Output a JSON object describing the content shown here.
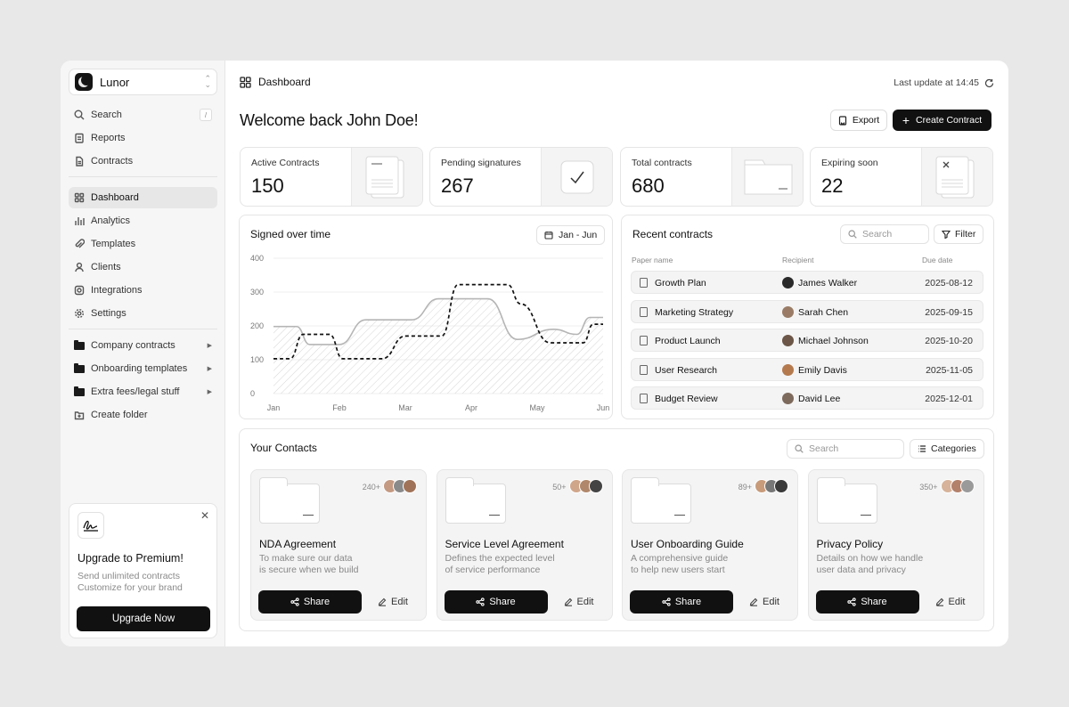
{
  "app": {
    "name": "Lunor"
  },
  "sidebar": {
    "search_label": "Search",
    "search_shortcut": "/",
    "top_items": [
      {
        "label": "Reports",
        "icon": "report-icon"
      },
      {
        "label": "Contracts",
        "icon": "contract-icon"
      }
    ],
    "main_items": [
      {
        "label": "Dashboard",
        "icon": "grid-icon",
        "active": true
      },
      {
        "label": "Analytics",
        "icon": "analytics-icon"
      },
      {
        "label": "Templates",
        "icon": "paperclip-icon"
      },
      {
        "label": "Clients",
        "icon": "user-icon"
      },
      {
        "label": "Integrations",
        "icon": "integrations-icon"
      },
      {
        "label": "Settings",
        "icon": "gear-icon"
      }
    ],
    "folders": [
      {
        "label": "Company contracts"
      },
      {
        "label": "Onboarding templates"
      },
      {
        "label": "Extra fees/legal stuff"
      }
    ],
    "create_folder": "Create folder",
    "upgrade": {
      "title": "Upgrade to Premium!",
      "line1": "Send unlimited contracts",
      "line2": "Customize for your brand",
      "button": "Upgrade Now"
    }
  },
  "header": {
    "breadcrumb": "Dashboard",
    "last_update": "Last update at 14:45",
    "welcome": "Welcome back John Doe!",
    "export_label": "Export",
    "create_label": "Create Contract"
  },
  "stats": [
    {
      "label": "Active Contracts",
      "value": "150"
    },
    {
      "label": "Pending signatures",
      "value": "267"
    },
    {
      "label": "Total contracts",
      "value": "680"
    },
    {
      "label": "Expiring soon",
      "value": "22"
    }
  ],
  "chart": {
    "title": "Signed over time",
    "range_label": "Jan - Jun"
  },
  "chart_data": {
    "type": "line",
    "x": [
      "Jan",
      "Feb",
      "Mar",
      "Apr",
      "May",
      "Jun"
    ],
    "x_positions": [
      0,
      1,
      2,
      3,
      4,
      5
    ],
    "ylim": [
      0,
      400
    ],
    "yticks": [
      0,
      100,
      200,
      300,
      400
    ],
    "grid": true,
    "legend": "none",
    "series": [
      {
        "style": "solid",
        "color": "#b5b5b5",
        "points": [
          [
            0,
            198
          ],
          [
            0.35,
            198
          ],
          [
            0.55,
            145
          ],
          [
            1.0,
            145
          ],
          [
            1.4,
            218
          ],
          [
            2.1,
            218
          ],
          [
            2.5,
            280
          ],
          [
            3.25,
            280
          ],
          [
            3.7,
            160
          ],
          [
            4.25,
            190
          ],
          [
            4.6,
            175
          ],
          [
            4.8,
            225
          ],
          [
            5.0,
            225
          ]
        ]
      },
      {
        "style": "dashed",
        "color": "#111111",
        "points": [
          [
            0,
            103
          ],
          [
            0.25,
            103
          ],
          [
            0.45,
            175
          ],
          [
            0.85,
            175
          ],
          [
            1.05,
            103
          ],
          [
            1.65,
            103
          ],
          [
            2.0,
            170
          ],
          [
            2.55,
            170
          ],
          [
            2.8,
            322
          ],
          [
            3.55,
            322
          ],
          [
            3.75,
            265
          ],
          [
            4.2,
            150
          ],
          [
            4.7,
            150
          ],
          [
            4.85,
            205
          ],
          [
            5.0,
            205
          ]
        ]
      }
    ]
  },
  "recent": {
    "title": "Recent contracts",
    "search_placeholder": "Search",
    "filter_label": "Filter",
    "columns": [
      "Paper name",
      "Recipient",
      "Due date"
    ],
    "rows": [
      {
        "paper": "Growth Plan",
        "recipient": "James Walker",
        "due": "2025-08-12",
        "avatar": "#2a2a2a"
      },
      {
        "paper": "Marketing Strategy",
        "recipient": "Sarah Chen",
        "due": "2025-09-15",
        "avatar": "#9a7c66"
      },
      {
        "paper": "Product Launch",
        "recipient": "Michael Johnson",
        "due": "2025-10-20",
        "avatar": "#6b5647"
      },
      {
        "paper": "User Research",
        "recipient": "Emily Davis",
        "due": "2025-11-05",
        "avatar": "#b47a4e"
      },
      {
        "paper": "Budget Review",
        "recipient": "David Lee",
        "due": "2025-12-01",
        "avatar": "#7d6a5c"
      }
    ]
  },
  "contacts": {
    "title": "Your Contacts",
    "search_placeholder": "Search",
    "categories_label": "Categories",
    "share_label": "Share",
    "edit_label": "Edit",
    "cards": [
      {
        "name": "NDA Agreement",
        "line1": "To make sure our data",
        "line2": "is secure when we build",
        "count": "240+",
        "avatars": [
          "#c49a82",
          "#8a8a8a",
          "#a07358"
        ]
      },
      {
        "name": "Service Level Agreement",
        "line1": "Defines the expected level",
        "line2": "of service performance",
        "count": "50+",
        "avatars": [
          "#d0a68a",
          "#b0876a",
          "#444444"
        ]
      },
      {
        "name": "User Onboarding Guide",
        "line1": "A comprehensive guide",
        "line2": "to help new users start",
        "count": "89+",
        "avatars": [
          "#c89b7b",
          "#777777",
          "#3a3a3a"
        ]
      },
      {
        "name": "Privacy Policy",
        "line1": "Details on how we handle",
        "line2": "user data and privacy",
        "count": "350+",
        "avatars": [
          "#d6b39a",
          "#b3806a",
          "#9a9a9a"
        ]
      }
    ]
  }
}
